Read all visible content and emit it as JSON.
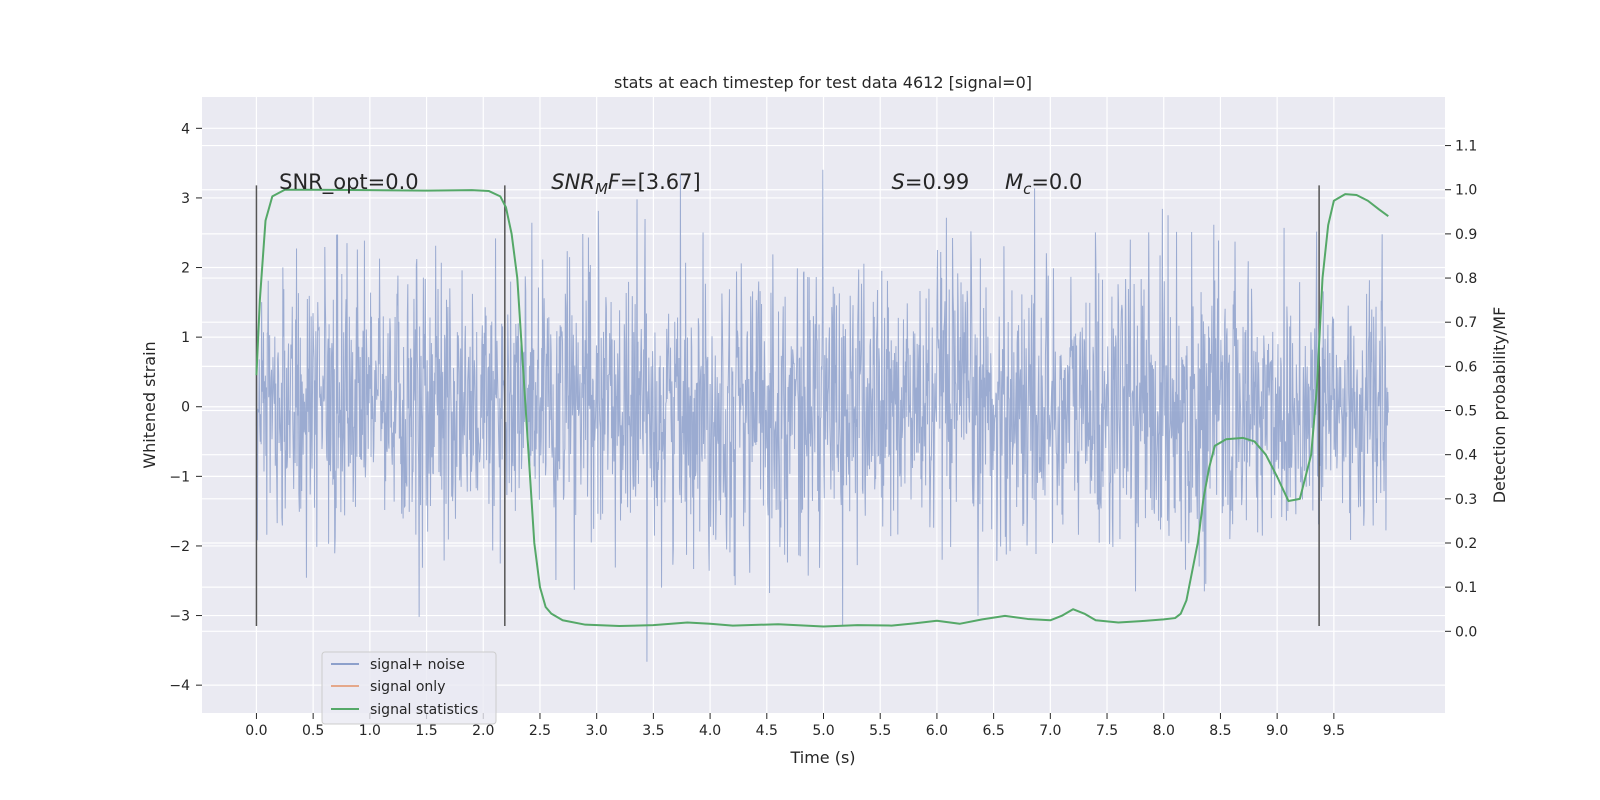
{
  "chart_data": {
    "type": "line",
    "title": "stats at each timestep for test data 4612 [signal=0]",
    "xlabel": "Time (s)",
    "ylabel": "Whitened strain",
    "ylabel_right": "Detection probability/MF",
    "xlim": [
      -0.48,
      10.48
    ],
    "ylim": [
      -4.4,
      4.45
    ],
    "ylim_right": [
      -0.185,
      1.21
    ],
    "x_ticks": [
      0.0,
      0.5,
      1.0,
      1.5,
      2.0,
      2.5,
      3.0,
      3.5,
      4.0,
      4.5,
      5.0,
      5.5,
      6.0,
      6.5,
      7.0,
      7.5,
      8.0,
      8.5,
      9.0,
      9.5
    ],
    "x_tick_labels": [
      "0.0",
      "0.5",
      "1.0",
      "1.5",
      "2.0",
      "2.5",
      "3.0",
      "3.5",
      "4.0",
      "4.5",
      "5.0",
      "5.5",
      "6.0",
      "6.5",
      "7.0",
      "7.5",
      "8.0",
      "8.5",
      "9.0",
      "9.5"
    ],
    "y_ticks": [
      4,
      3,
      2,
      1,
      0,
      -1,
      -2,
      -3,
      -4
    ],
    "y_tick_labels": [
      "4",
      "3",
      "2",
      "1",
      "0",
      "−1",
      "−2",
      "−3",
      "−4"
    ],
    "y_right_ticks": [
      1.1,
      1.0,
      0.9,
      0.8,
      0.7,
      0.6,
      0.5,
      0.4,
      0.3,
      0.2,
      0.1,
      0.0
    ],
    "y_right_tick_labels": [
      "1.1",
      "1.0",
      "0.9",
      "0.8",
      "0.7",
      "0.6",
      "0.5",
      "0.4",
      "0.3",
      "0.2",
      "0.1",
      "0.0"
    ],
    "grid": true,
    "legend_position": "lower-left",
    "annotations": [
      {
        "text": "SNR_opt=0.0",
        "x": 0.2,
        "y": 3.2
      },
      {
        "text": "SNR",
        "sub": "M",
        "suffix": "F=[3.67]",
        "x": 2.6,
        "y": 3.2
      },
      {
        "text": "S",
        "suffix": "=0.99",
        "x": 5.6,
        "y": 3.2
      },
      {
        "text": "M",
        "sub": "c",
        "suffix": "=0.0",
        "x": 6.6,
        "y": 3.2
      }
    ],
    "vertical_lines": {
      "x": [
        0.0,
        2.19,
        9.37
      ],
      "y_range": [
        -3.15,
        3.18
      ]
    },
    "series": [
      {
        "name": "signal+ noise",
        "color": "#8da0cb",
        "axis": "left",
        "style": "dense-noise",
        "x_range": [
          0.0,
          9.98
        ],
        "amplitude": 1.0
      },
      {
        "name": "signal only",
        "color": "#e5a88a",
        "axis": "left",
        "values": []
      },
      {
        "name": "signal statistics",
        "color": "#55a868",
        "axis": "right",
        "points": [
          [
            0.0,
            0.58
          ],
          [
            0.03,
            0.75
          ],
          [
            0.08,
            0.93
          ],
          [
            0.14,
            0.985
          ],
          [
            0.25,
            1.0
          ],
          [
            0.5,
            1.0
          ],
          [
            1.0,
            0.999
          ],
          [
            1.5,
            0.998
          ],
          [
            1.9,
            0.999
          ],
          [
            2.05,
            0.997
          ],
          [
            2.15,
            0.985
          ],
          [
            2.2,
            0.96
          ],
          [
            2.25,
            0.9
          ],
          [
            2.3,
            0.8
          ],
          [
            2.35,
            0.6
          ],
          [
            2.4,
            0.4
          ],
          [
            2.45,
            0.2
          ],
          [
            2.5,
            0.1
          ],
          [
            2.55,
            0.055
          ],
          [
            2.6,
            0.04
          ],
          [
            2.7,
            0.025
          ],
          [
            2.9,
            0.015
          ],
          [
            3.2,
            0.012
          ],
          [
            3.5,
            0.014
          ],
          [
            3.8,
            0.02
          ],
          [
            4.0,
            0.017
          ],
          [
            4.2,
            0.013
          ],
          [
            4.6,
            0.016
          ],
          [
            5.0,
            0.011
          ],
          [
            5.3,
            0.014
          ],
          [
            5.6,
            0.013
          ],
          [
            5.8,
            0.018
          ],
          [
            6.0,
            0.024
          ],
          [
            6.2,
            0.017
          ],
          [
            6.4,
            0.027
          ],
          [
            6.6,
            0.035
          ],
          [
            6.8,
            0.028
          ],
          [
            7.0,
            0.025
          ],
          [
            7.1,
            0.035
          ],
          [
            7.2,
            0.05
          ],
          [
            7.3,
            0.04
          ],
          [
            7.4,
            0.025
          ],
          [
            7.6,
            0.02
          ],
          [
            7.8,
            0.023
          ],
          [
            8.0,
            0.027
          ],
          [
            8.1,
            0.03
          ],
          [
            8.15,
            0.04
          ],
          [
            8.2,
            0.07
          ],
          [
            8.3,
            0.2
          ],
          [
            8.35,
            0.3
          ],
          [
            8.4,
            0.37
          ],
          [
            8.45,
            0.42
          ],
          [
            8.55,
            0.435
          ],
          [
            8.7,
            0.438
          ],
          [
            8.8,
            0.43
          ],
          [
            8.9,
            0.4
          ],
          [
            9.0,
            0.35
          ],
          [
            9.1,
            0.295
          ],
          [
            9.2,
            0.3
          ],
          [
            9.3,
            0.4
          ],
          [
            9.35,
            0.55
          ],
          [
            9.4,
            0.8
          ],
          [
            9.45,
            0.92
          ],
          [
            9.5,
            0.975
          ],
          [
            9.6,
            0.99
          ],
          [
            9.7,
            0.988
          ],
          [
            9.8,
            0.975
          ],
          [
            9.9,
            0.955
          ],
          [
            9.98,
            0.94
          ]
        ]
      }
    ]
  }
}
